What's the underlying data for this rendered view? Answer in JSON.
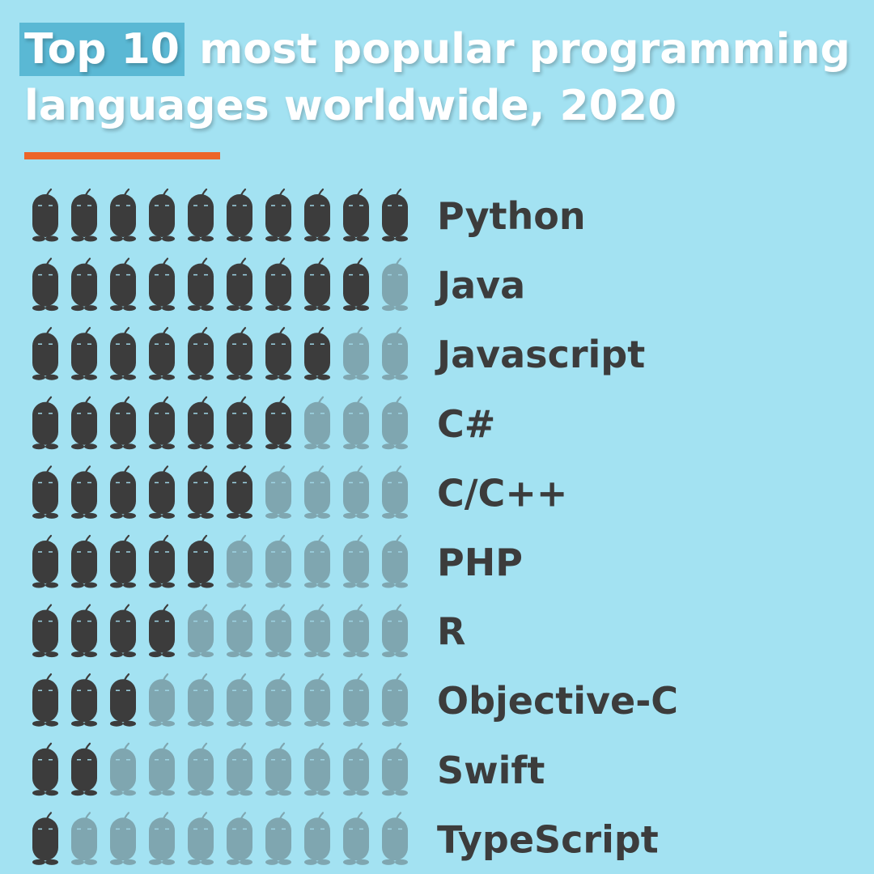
{
  "title": {
    "highlight": "Top 10",
    "line1_rest": "most popular programming",
    "line2": "languages worldwide, 2020"
  },
  "colors": {
    "background": "#a3e2f2",
    "title_highlight": "#5ab8d4",
    "accent_rule": "#ec6529",
    "filled_icon": "#3c3c3c",
    "empty_icon": "#7fa6b0"
  },
  "icon": "robot-bean-icon",
  "chart_data": {
    "type": "pictograph",
    "scale_max": 10,
    "categories": [
      "Python",
      "Java",
      "Javascript",
      "C#",
      "C/C++",
      "PHP",
      "R",
      "Objective-C",
      "Swift",
      "TypeScript"
    ],
    "values": [
      10,
      9,
      8,
      7,
      6,
      5,
      4,
      3,
      2,
      1
    ]
  }
}
